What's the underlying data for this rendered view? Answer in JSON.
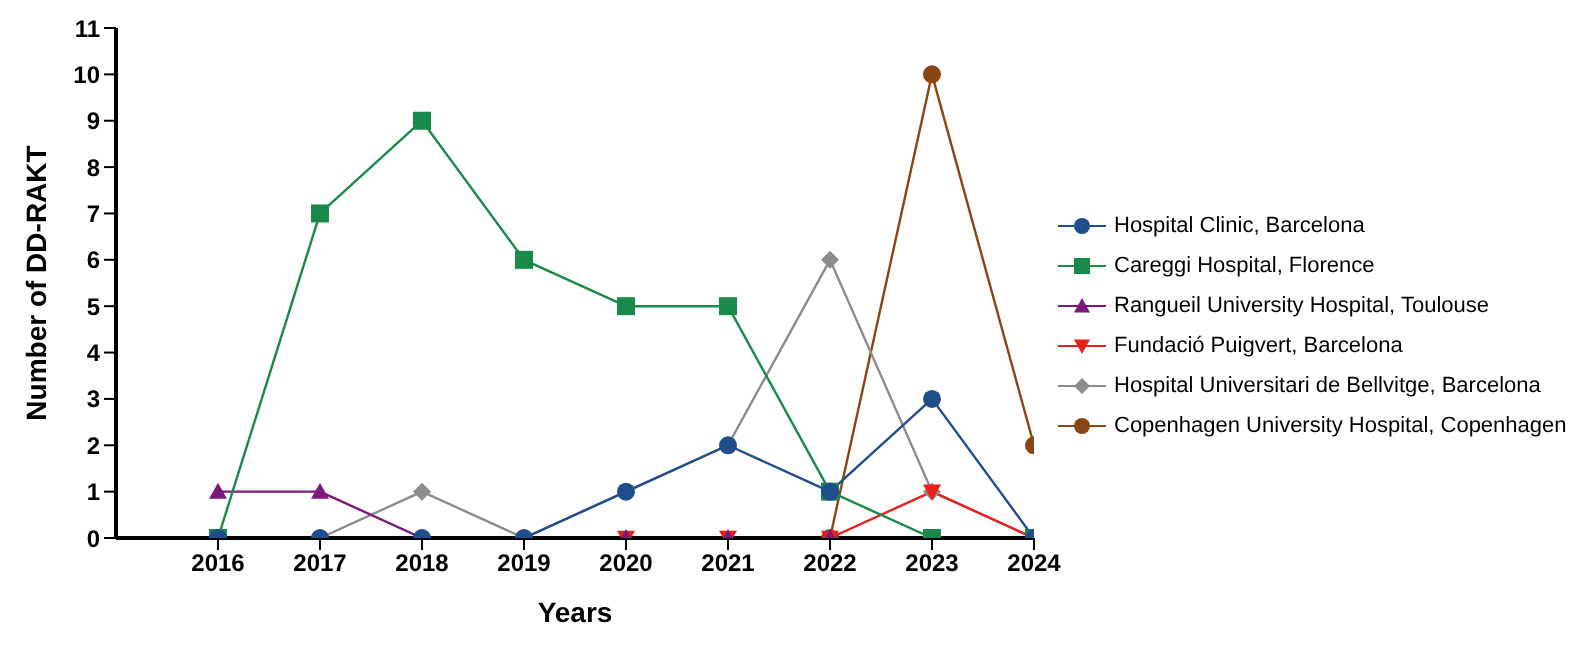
{
  "chart_data": {
    "type": "line",
    "xlabel": "Years",
    "ylabel": "Number of DD-RAKT",
    "x": [
      2016,
      2017,
      2018,
      2019,
      2020,
      2021,
      2022,
      2023,
      2024
    ],
    "xlim": [
      2015,
      2024
    ],
    "xticks": [
      2016,
      2017,
      2018,
      2019,
      2020,
      2021,
      2022,
      2023,
      2024
    ],
    "ylim": [
      0,
      11
    ],
    "yticks": [
      0,
      1,
      2,
      3,
      4,
      5,
      6,
      7,
      8,
      9,
      10,
      11
    ],
    "legend": "right",
    "series": [
      {
        "name": "Hospital Clinic, Barcelona",
        "color": "#1f4e8c",
        "marker": "circle",
        "values": [
          0,
          0,
          0,
          0,
          1,
          2,
          1,
          3,
          0
        ]
      },
      {
        "name": "Careggi Hospital, Florence",
        "color": "#1a8a4a",
        "marker": "square",
        "values": [
          0,
          7,
          9,
          6,
          5,
          5,
          1,
          0,
          0
        ]
      },
      {
        "name": "Rangueil University Hospital, Toulouse",
        "color": "#7b1a7b",
        "marker": "triangle",
        "values": [
          1,
          1,
          0,
          null,
          0,
          0,
          0,
          0,
          null
        ]
      },
      {
        "name": "Fundació Puigvert, Barcelona",
        "color": "#e8201e",
        "marker": "triangle-down",
        "values": [
          null,
          null,
          null,
          null,
          0,
          0,
          0,
          1,
          0
        ]
      },
      {
        "name": "Hospital Universitari de Bellvitge, Barcelona",
        "color": "#8c8c8c",
        "marker": "diamond",
        "values": [
          null,
          0,
          1,
          0,
          null,
          2,
          6,
          1,
          0
        ]
      },
      {
        "name": "Copenhagen University Hospital, Copenhagen",
        "color": "#8b4513",
        "marker": "circle",
        "values": [
          null,
          null,
          null,
          null,
          null,
          null,
          0,
          10,
          2
        ]
      }
    ]
  }
}
